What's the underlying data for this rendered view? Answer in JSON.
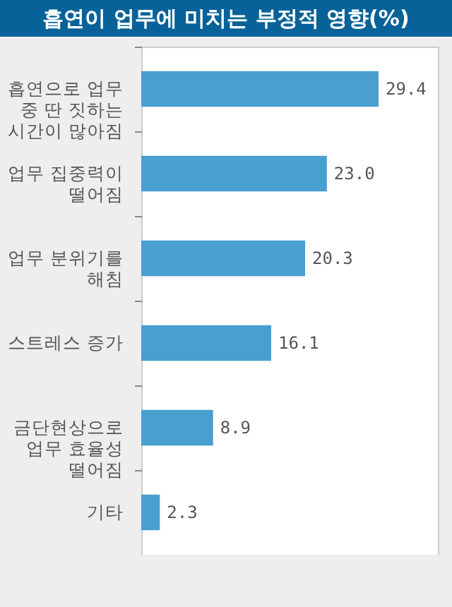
{
  "chart_data": {
    "type": "bar",
    "orientation": "horizontal",
    "tick_labels": false,
    "title": "흡연이 업무에 미치는 부정적 영향(%)",
    "categories": [
      "흡연으로 업무\n중 딴 짓하는\n시간이 많아짐",
      "업무 집중력이\n떨어짐",
      "업무 분위기를\n해침",
      "스트레스 증가",
      "금단현상으로\n업무 효율성\n떨어짐",
      "기타"
    ],
    "values": [
      29.4,
      23.0,
      20.3,
      16.1,
      8.9,
      2.3
    ],
    "value_labels": [
      "29.4",
      "23.0",
      "20.3",
      "16.1",
      "8.9",
      "2.3"
    ],
    "colors": [
      "#489fd0",
      "#489fd0",
      "#489fd0",
      "#489fd0",
      "#489fd0",
      "#489fd0"
    ]
  }
}
